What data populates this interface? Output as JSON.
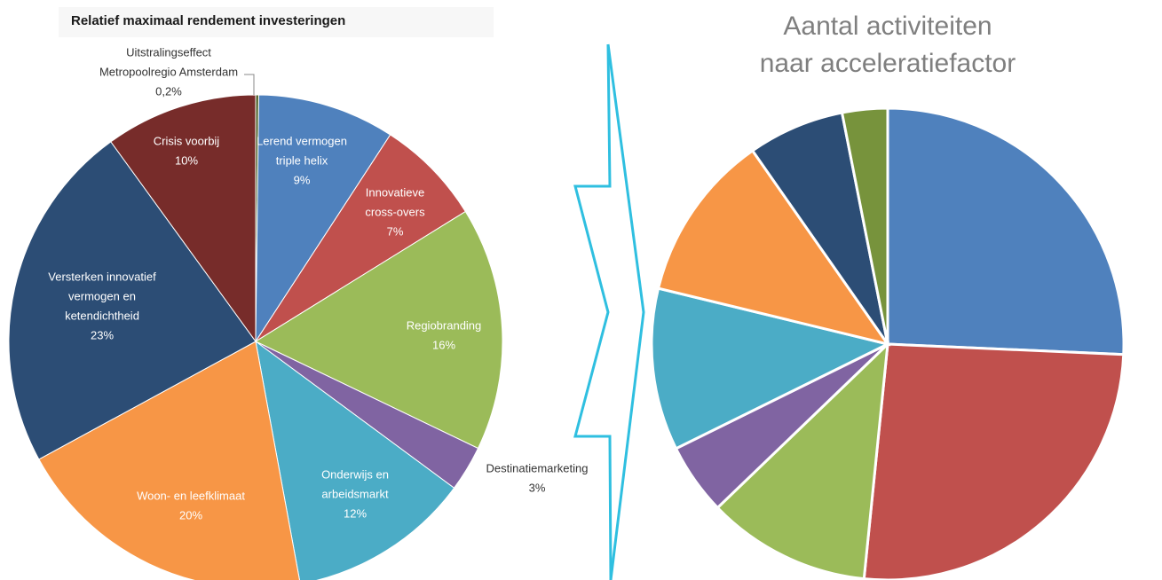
{
  "chart_data": [
    {
      "type": "pie",
      "title": "Relatief maximaal rendement investeringen",
      "labels": [
        [
          "Uitstralingseffect",
          "Metropoolregio Amsterdam"
        ],
        [
          "Lerend vermogen",
          "triple helix"
        ],
        [
          "Innovatieve",
          "cross-overs"
        ],
        [
          "Regiobranding"
        ],
        [
          "Destinatiemarketing"
        ],
        [
          "Onderwijs en",
          "arbeidsmarkt"
        ],
        [
          "Woon- en leefklimaat"
        ],
        [
          "Versterken innovatief",
          "vermogen en",
          "ketendichtheid"
        ],
        [
          "Crisis voorbij"
        ]
      ],
      "values": [
        0.2,
        9,
        7,
        16,
        3,
        12,
        20,
        23,
        10
      ],
      "value_labels": [
        "0,2%",
        "9%",
        "7%",
        "16%",
        "3%",
        "12%",
        "20%",
        "23%",
        "10%"
      ],
      "colors": [
        "#4f6228",
        "#4f81bd",
        "#c0504d",
        "#9bbb59",
        "#8064a2",
        "#4bacc6",
        "#f79646",
        "#2c4d75",
        "#772c2a"
      ]
    },
    {
      "type": "pie",
      "title": [
        "Aantal activiteiten",
        "naar acceleratiefactor"
      ],
      "values": [
        25.7,
        25.9,
        11.2,
        4.9,
        11.1,
        11.5,
        6.6,
        3.1
      ],
      "colors": [
        "#4f81bd",
        "#c0504d",
        "#9bbb59",
        "#8064a2",
        "#4bacc6",
        "#f79646",
        "#2c4d75",
        "#77933c"
      ]
    }
  ]
}
